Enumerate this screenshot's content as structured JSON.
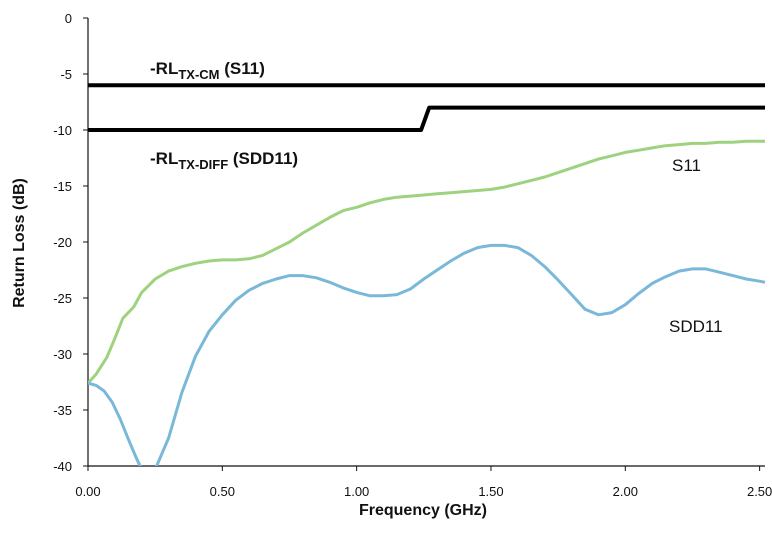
{
  "chart_data": {
    "type": "line",
    "xlabel": "Frequency (GHz)",
    "ylabel": "Return Loss (dB)",
    "xlim": [
      0,
      2.52
    ],
    "ylim": [
      -40,
      0
    ],
    "x_ticks": [
      "0.00",
      "0.50",
      "1.00",
      "1.50",
      "2.00",
      "2.50"
    ],
    "y_ticks": [
      "0",
      "-5",
      "-10",
      "-15",
      "-20",
      "-25",
      "-30",
      "-35",
      "-40"
    ],
    "grid": false,
    "legend": "none",
    "annotations": {
      "cm": {
        "prefix": "-RL",
        "sub": "TX-CM",
        "suffix": " (S11)"
      },
      "diff": {
        "prefix": "-RL",
        "sub": "TX-DIFF",
        "suffix": " (SDD11)"
      }
    },
    "series": [
      {
        "name": "-RLTX-CM (S11)",
        "color": "#000000",
        "x": [
          0,
          2.52
        ],
        "y": [
          -6,
          -6
        ]
      },
      {
        "name": "-RLTX-DIFF (SDD11)",
        "color": "#000000",
        "x": [
          0,
          1.24,
          1.27,
          2.52
        ],
        "y": [
          -10,
          -10,
          -8,
          -8
        ]
      },
      {
        "name": "S11",
        "color": "#9ed27e",
        "x": [
          0,
          0.03,
          0.07,
          0.1,
          0.13,
          0.17,
          0.2,
          0.25,
          0.3,
          0.35,
          0.4,
          0.45,
          0.5,
          0.55,
          0.6,
          0.65,
          0.7,
          0.75,
          0.8,
          0.85,
          0.9,
          0.95,
          1.0,
          1.05,
          1.1,
          1.15,
          1.2,
          1.25,
          1.3,
          1.35,
          1.4,
          1.45,
          1.5,
          1.55,
          1.6,
          1.65,
          1.7,
          1.75,
          1.8,
          1.85,
          1.9,
          1.95,
          2.0,
          2.05,
          2.1,
          2.15,
          2.2,
          2.25,
          2.3,
          2.35,
          2.4,
          2.45,
          2.5,
          2.52
        ],
        "y": [
          -32.6,
          -31.8,
          -30.3,
          -28.6,
          -26.8,
          -25.8,
          -24.5,
          -23.3,
          -22.6,
          -22.2,
          -21.9,
          -21.7,
          -21.6,
          -21.6,
          -21.5,
          -21.2,
          -20.6,
          -20.0,
          -19.2,
          -18.5,
          -17.8,
          -17.2,
          -16.9,
          -16.5,
          -16.2,
          -16.0,
          -15.9,
          -15.8,
          -15.7,
          -15.6,
          -15.5,
          -15.4,
          -15.3,
          -15.1,
          -14.8,
          -14.5,
          -14.2,
          -13.8,
          -13.4,
          -13.0,
          -12.6,
          -12.3,
          -12.0,
          -11.8,
          -11.6,
          -11.4,
          -11.3,
          -11.2,
          -11.2,
          -11.1,
          -11.1,
          -11.0,
          -11.0,
          -11.0
        ]
      },
      {
        "name": "SDD11",
        "color": "#7ab8d9",
        "x": [
          0,
          0.03,
          0.06,
          0.09,
          0.12,
          0.15,
          0.18,
          0.2,
          0.25,
          0.3,
          0.35,
          0.4,
          0.45,
          0.5,
          0.55,
          0.6,
          0.65,
          0.7,
          0.75,
          0.8,
          0.85,
          0.9,
          0.95,
          1.0,
          1.05,
          1.1,
          1.15,
          1.2,
          1.25,
          1.3,
          1.35,
          1.4,
          1.45,
          1.5,
          1.55,
          1.6,
          1.65,
          1.7,
          1.75,
          1.8,
          1.85,
          1.9,
          1.95,
          2.0,
          2.05,
          2.1,
          2.15,
          2.2,
          2.25,
          2.3,
          2.35,
          2.4,
          2.45,
          2.5,
          2.52
        ],
        "y": [
          -32.6,
          -32.8,
          -33.3,
          -34.3,
          -35.8,
          -37.6,
          -39.3,
          -40.3,
          -40.3,
          -37.5,
          -33.4,
          -30.2,
          -28.0,
          -26.5,
          -25.2,
          -24.3,
          -23.7,
          -23.3,
          -23.0,
          -23.0,
          -23.2,
          -23.6,
          -24.1,
          -24.5,
          -24.8,
          -24.8,
          -24.7,
          -24.2,
          -23.3,
          -22.5,
          -21.7,
          -21.0,
          -20.5,
          -20.3,
          -20.3,
          -20.5,
          -21.2,
          -22.2,
          -23.4,
          -24.7,
          -26.0,
          -26.5,
          -26.3,
          -25.6,
          -24.6,
          -23.7,
          -23.1,
          -22.6,
          -22.4,
          -22.4,
          -22.7,
          -23.0,
          -23.3,
          -23.5,
          -23.6
        ]
      }
    ],
    "series_labels": [
      "S11",
      "SDD11"
    ]
  }
}
